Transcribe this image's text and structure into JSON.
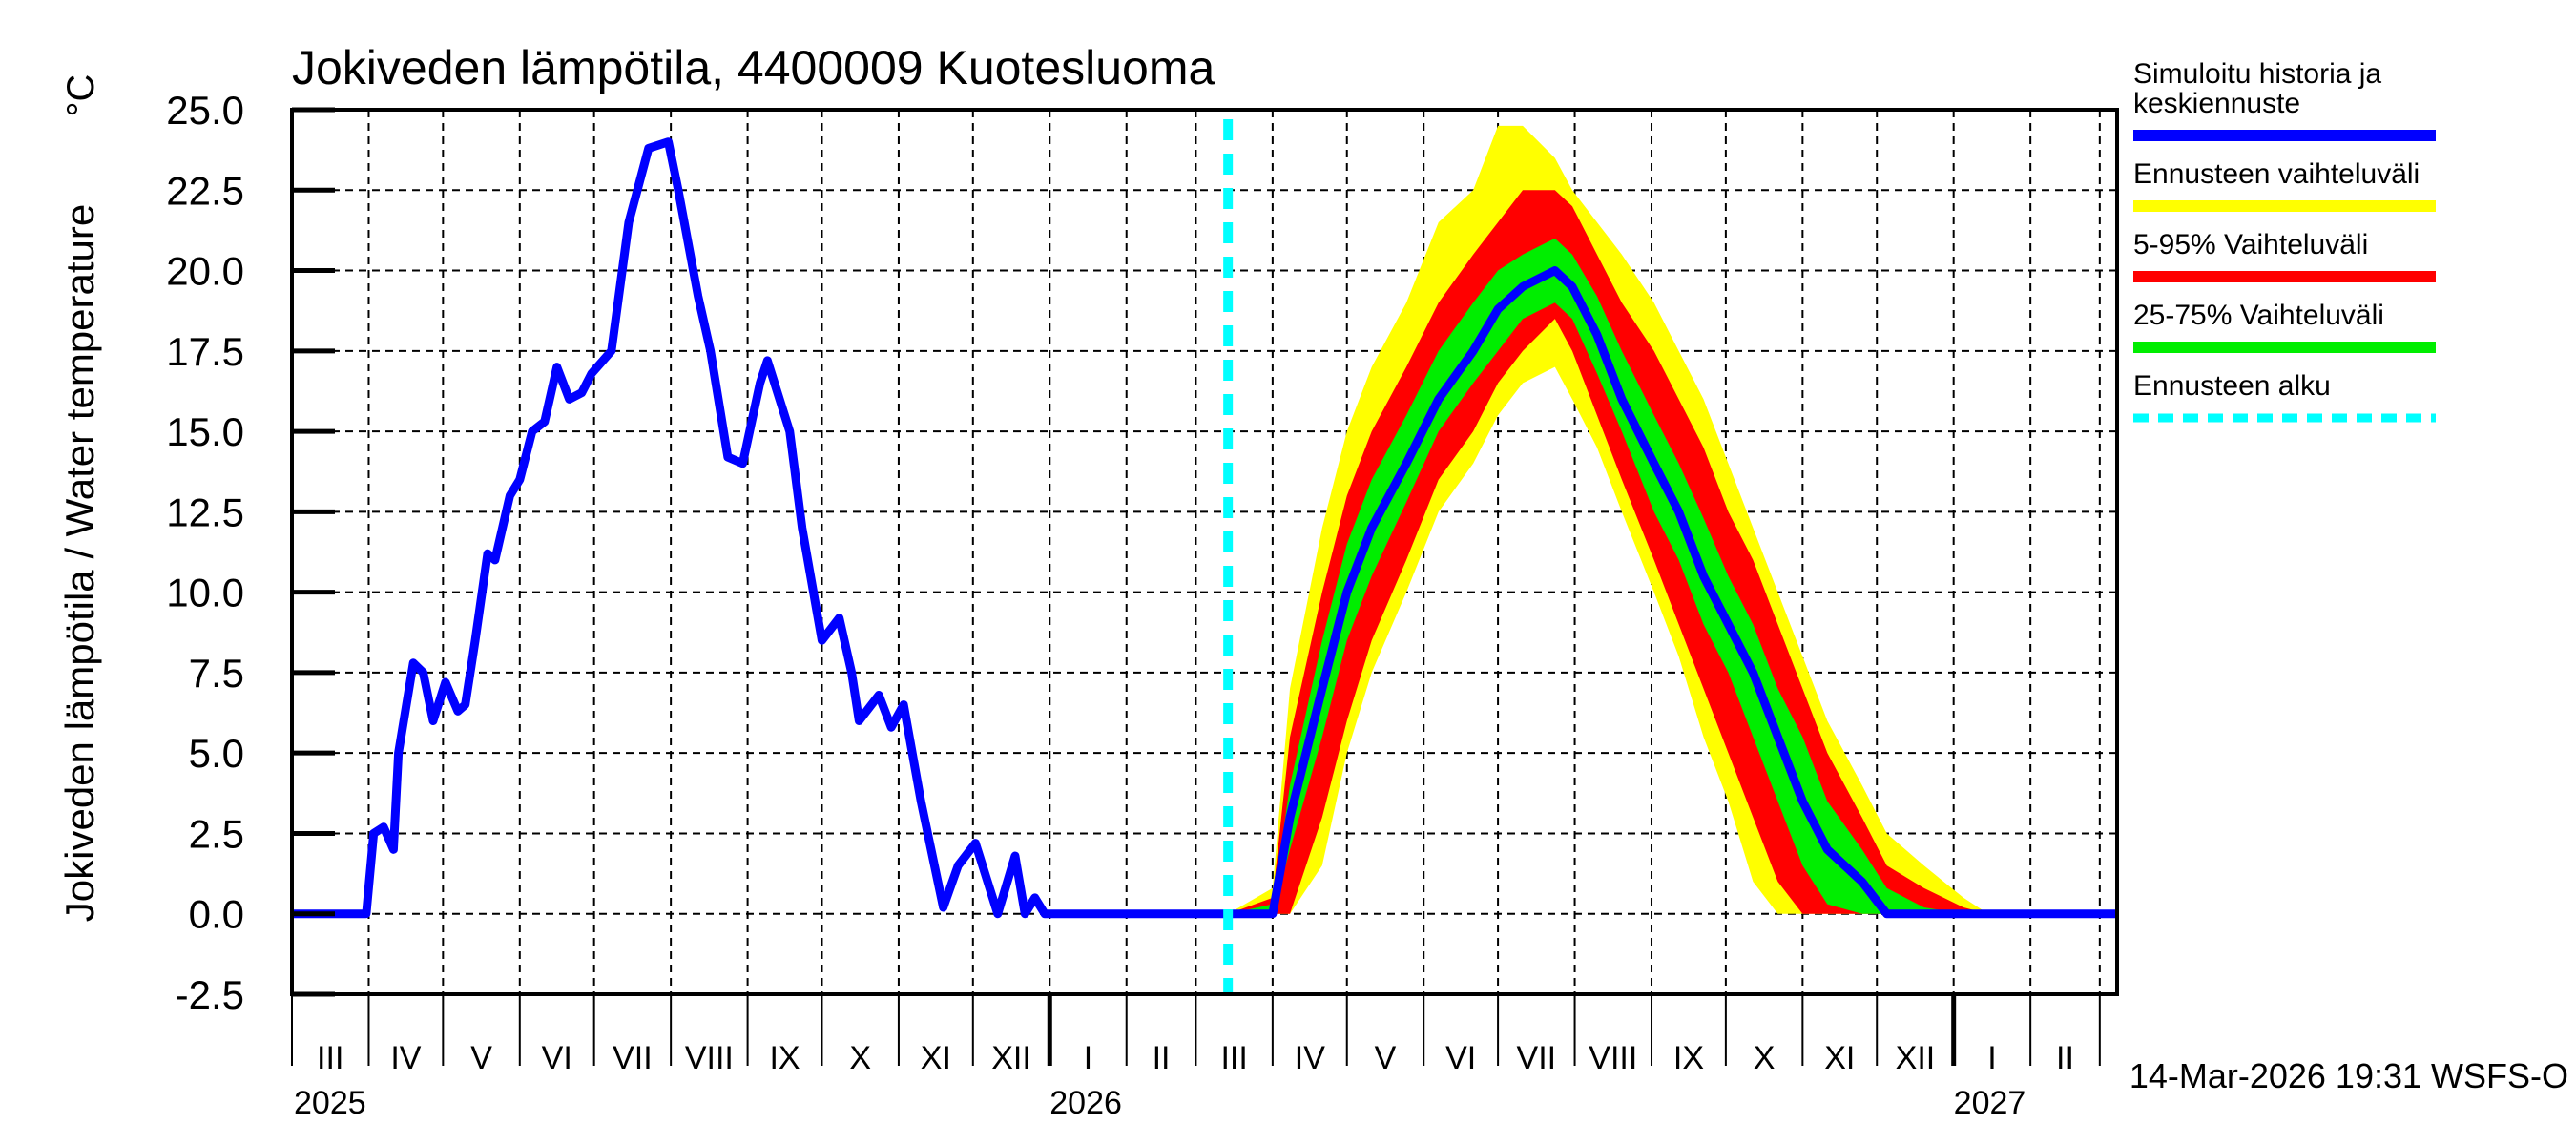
{
  "chart_data": {
    "type": "area",
    "title": "Jokiveden lämpötila, 4400009 Kuotesluoma",
    "ylabel": "Jokiveden lämpötila / Water temperature",
    "yunit": "°C",
    "ylim": [
      -2.5,
      25.0
    ],
    "yticks": [
      "25.0",
      "22.5",
      "20.0",
      "17.5",
      "15.0",
      "12.5",
      "10.0",
      "7.5",
      "5.0",
      "2.5",
      "0.0",
      "-2.5"
    ],
    "xlim": [
      "2025-03-01",
      "2027-03-08"
    ],
    "month_labels": [
      "III",
      "IV",
      "V",
      "VI",
      "VII",
      "VIII",
      "IX",
      "X",
      "XI",
      "XII",
      "I",
      "II",
      "III",
      "IV",
      "V",
      "VI",
      "VII",
      "VIII",
      "IX",
      "X",
      "XI",
      "XII",
      "I",
      "II"
    ],
    "year_labels": [
      "2025",
      "2026",
      "2027"
    ],
    "grid": true,
    "legend_placement": "right",
    "forecast_start": "2026-03-14",
    "colors": {
      "history": "#0000ff",
      "range": "#ffff00",
      "p5_95": "#ff0000",
      "p25_75": "#00ee00",
      "forecast_start": "#00ffff"
    },
    "legend": [
      {
        "label_lines": [
          "Simuloitu historia ja",
          "keskiennuste"
        ],
        "color": "#0000ff",
        "style": "solid"
      },
      {
        "label_lines": [
          "Ennusteen vaihteluväli"
        ],
        "color": "#ffff00",
        "style": "solid"
      },
      {
        "label_lines": [
          "5-95% Vaihteluväli"
        ],
        "color": "#ff0000",
        "style": "solid"
      },
      {
        "label_lines": [
          "25-75% Vaihteluväli"
        ],
        "color": "#00ee00",
        "style": "solid"
      },
      {
        "label_lines": [
          "Ennusteen alku"
        ],
        "color": "#00ffff",
        "style": "dashed"
      }
    ],
    "history": {
      "dates": [
        "2025-03-01",
        "2025-03-31",
        "2025-04-03",
        "2025-04-07",
        "2025-04-11",
        "2025-04-13",
        "2025-04-19",
        "2025-04-23",
        "2025-04-27",
        "2025-05-02",
        "2025-05-07",
        "2025-05-10",
        "2025-05-14",
        "2025-05-19",
        "2025-05-22",
        "2025-05-28",
        "2025-06-01",
        "2025-06-06",
        "2025-06-11",
        "2025-06-16",
        "2025-06-21",
        "2025-06-26",
        "2025-06-30",
        "2025-07-08",
        "2025-07-15",
        "2025-07-23",
        "2025-07-31",
        "2025-08-04",
        "2025-08-12",
        "2025-08-17",
        "2025-08-24",
        "2025-08-30",
        "2025-09-06",
        "2025-09-09",
        "2025-09-18",
        "2025-09-23",
        "2025-10-01",
        "2025-10-08",
        "2025-10-13",
        "2025-10-16",
        "2025-10-24",
        "2025-10-29",
        "2025-11-03",
        "2025-11-10",
        "2025-11-19",
        "2025-11-25",
        "2025-12-02",
        "2025-12-11",
        "2025-12-18",
        "2025-12-22",
        "2025-12-26",
        "2025-12-30",
        "2026-03-14"
      ],
      "values": [
        0,
        0,
        2.5,
        2.7,
        2.0,
        5.0,
        7.8,
        7.5,
        6.0,
        7.2,
        6.3,
        6.5,
        8.5,
        11.2,
        11.0,
        13.0,
        13.5,
        15.0,
        15.3,
        17.0,
        16.0,
        16.2,
        16.8,
        17.5,
        21.5,
        23.8,
        24.0,
        22.5,
        19.2,
        17.5,
        14.2,
        14.0,
        16.5,
        17.2,
        15.0,
        12.0,
        8.5,
        9.2,
        7.5,
        6.0,
        6.8,
        5.8,
        6.5,
        3.5,
        0.2,
        1.5,
        2.2,
        0,
        1.8,
        0,
        0.5,
        0,
        0
      ]
    },
    "forecast": {
      "dates": [
        "2026-03-14",
        "2026-04-01",
        "2026-04-08",
        "2026-04-21",
        "2026-05-01",
        "2026-05-11",
        "2026-05-25",
        "2026-06-07",
        "2026-06-21",
        "2026-07-01",
        "2026-07-11",
        "2026-07-24",
        "2026-07-31",
        "2026-08-10",
        "2026-08-20",
        "2026-09-02",
        "2026-09-12",
        "2026-09-22",
        "2026-10-02",
        "2026-10-12",
        "2026-10-22",
        "2026-11-01",
        "2026-11-11",
        "2026-11-25",
        "2026-12-05",
        "2026-12-20",
        "2027-01-05",
        "2027-01-15",
        "2027-03-08"
      ],
      "median": [
        0,
        0,
        3,
        7,
        10,
        12,
        14,
        16,
        17.5,
        18.8,
        19.5,
        20,
        19.5,
        18,
        16,
        14,
        12.5,
        10.5,
        9,
        7.5,
        5.5,
        3.5,
        2,
        1,
        0,
        0,
        0,
        0,
        0
      ],
      "p25": [
        0,
        0,
        2,
        5.5,
        8.5,
        10.5,
        12.8,
        15,
        16.5,
        17.5,
        18.5,
        19,
        18.5,
        16.8,
        15,
        12.5,
        11,
        9,
        7.5,
        5.5,
        3.5,
        1.5,
        0.3,
        0,
        0,
        0,
        0,
        0,
        0
      ],
      "p75": [
        0,
        0.3,
        4,
        8.5,
        11.5,
        13.5,
        15.5,
        17.5,
        19,
        20,
        20.5,
        21,
        20.5,
        19.2,
        17.5,
        15.5,
        14,
        12.3,
        10.5,
        9,
        7,
        5.5,
        3.5,
        2,
        0.8,
        0.2,
        0,
        0,
        0
      ],
      "p5": [
        0,
        0,
        0,
        3,
        6,
        8.5,
        11,
        13.5,
        15,
        16.5,
        17.5,
        18.5,
        17.5,
        15.5,
        13.5,
        11,
        9,
        7,
        5,
        3,
        1,
        0,
        0,
        0,
        0,
        0,
        0,
        0,
        0
      ],
      "p95": [
        0,
        0.5,
        5.5,
        10,
        13,
        15,
        17,
        19,
        20.5,
        21.5,
        22.5,
        22.5,
        22,
        20.5,
        19,
        17.5,
        16,
        14.5,
        12.5,
        11,
        9,
        7,
        5,
        3,
        1.5,
        0.8,
        0.2,
        0,
        0
      ],
      "min": [
        0,
        0,
        0,
        1.5,
        5,
        7.5,
        10,
        12.5,
        14,
        15.5,
        16.5,
        17,
        16,
        14.5,
        12.5,
        10,
        8,
        5.5,
        3.5,
        1,
        0,
        0,
        0,
        0,
        0,
        0,
        0,
        0,
        0
      ],
      "max": [
        0,
        0.8,
        7,
        12,
        15,
        17,
        19,
        21.5,
        22.5,
        24.5,
        24.5,
        23.5,
        22.5,
        21.5,
        20.5,
        19,
        17.5,
        16,
        14,
        12,
        10,
        8,
        6,
        4,
        2.5,
        1.5,
        0.5,
        0,
        0
      ]
    }
  },
  "footer": {
    "timestamp": "14-Mar-2026 19:31 WSFS-O"
  }
}
